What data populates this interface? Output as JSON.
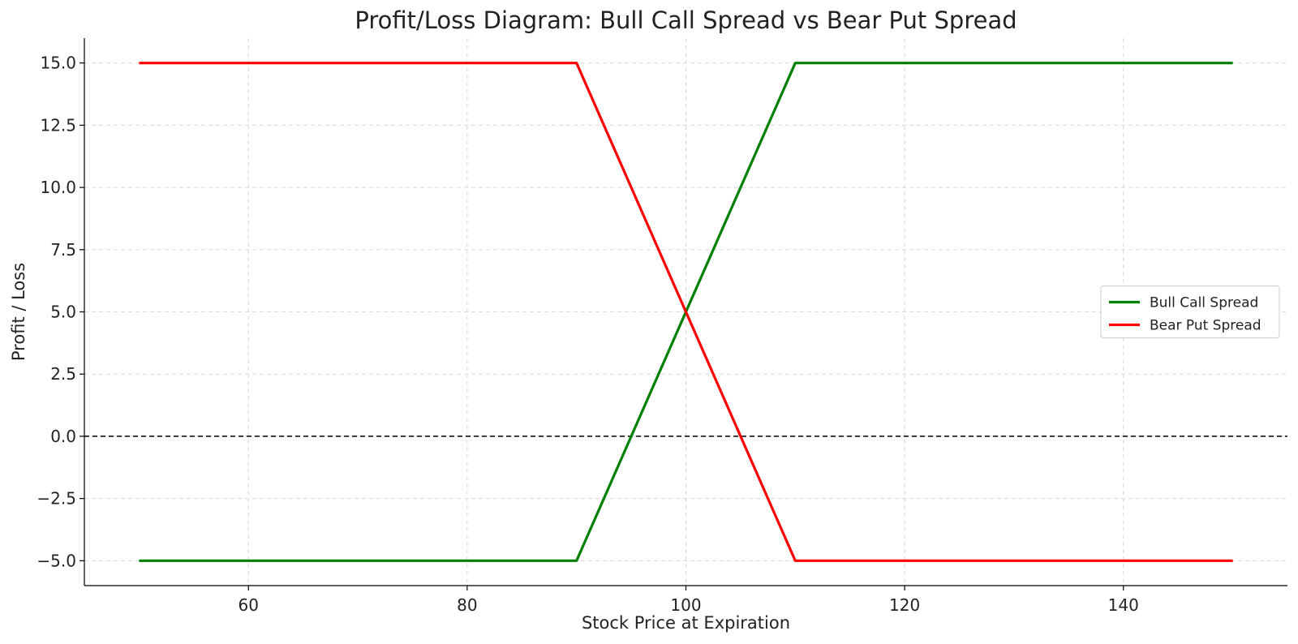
{
  "chart_data": {
    "type": "line",
    "title": "Profit/Loss Diagram: Bull Call Spread vs Bear Put Spread",
    "xlabel": "Stock Price at Expiration",
    "ylabel": "Profit / Loss",
    "xlim": [
      45,
      155
    ],
    "ylim": [
      -6,
      16
    ],
    "xticks": [
      60,
      80,
      100,
      120,
      140
    ],
    "xtick_labels": [
      "60",
      "80",
      "100",
      "120",
      "140"
    ],
    "yticks": [
      -5,
      -2.5,
      0,
      2.5,
      5,
      7.5,
      10,
      12.5,
      15
    ],
    "ytick_labels": [
      "−5.0",
      "−2.5",
      "0.0",
      "2.5",
      "5.0",
      "7.5",
      "10.0",
      "12.5",
      "15.0"
    ],
    "grid": true,
    "reference_line": {
      "y": 0,
      "style": "dashed",
      "color": "#000000"
    },
    "legend": {
      "position": "center-right"
    },
    "series": [
      {
        "name": "Bull Call Spread",
        "color": "#008000",
        "x": [
          50,
          90,
          110,
          150
        ],
        "y": [
          -5,
          -5,
          15,
          15
        ]
      },
      {
        "name": "Bear Put Spread",
        "color": "#ff0000",
        "x": [
          50,
          90,
          110,
          150
        ],
        "y": [
          15,
          15,
          -5,
          -5
        ]
      }
    ]
  }
}
